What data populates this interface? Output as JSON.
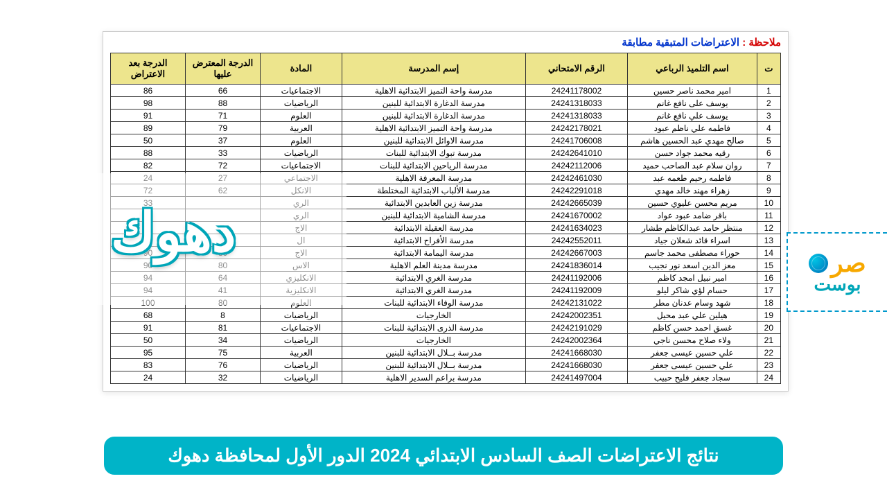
{
  "note_label": "ملاحظة :",
  "note_text": "الاعتراضات المتبقية مطابقة",
  "overlay_city": "دهوك",
  "banner_text": "نتائج الاعتراضات الصف السادس الابتدائي 2024 الدور الأول لمحافظة دهوك",
  "logo_main": "صر",
  "logo_sub": "بوست",
  "headers": [
    "ت",
    "اسم التلميذ الرباعي",
    "الرقم الامتحاني",
    "إسم المدرسة",
    "المادة",
    "الدرجة المعترض عليها",
    "الدرجة بعد الاعتراض"
  ],
  "rows": [
    {
      "n": "1",
      "name": "امير محمد ناصر حسين",
      "exam": "24241178002",
      "school": "مدرسة واحة التميز الابتدائية الاهلية",
      "subject": "الاجتماعيات",
      "g1": "66",
      "g2": "86"
    },
    {
      "n": "2",
      "name": "يوسف على نافع غانم",
      "exam": "24241318033",
      "school": "مدرسة الدغارة الابتدائية للبنين",
      "subject": "الرياضيات",
      "g1": "88",
      "g2": "98"
    },
    {
      "n": "3",
      "name": "يوسف علي نافع غانم",
      "exam": "24241318033",
      "school": "مدرسة الدغارة الابتدائية للبنين",
      "subject": "العلوم",
      "g1": "71",
      "g2": "91"
    },
    {
      "n": "4",
      "name": "فاطمه علي ناظم عبود",
      "exam": "24242178021",
      "school": "مدرسة واحة التميز الابتدائية الاهلية",
      "subject": "العربية",
      "g1": "79",
      "g2": "89"
    },
    {
      "n": "5",
      "name": "صالح مهدي عبد الحسين هاشم",
      "exam": "24241706008",
      "school": "مدرسة الاوائل الابتدائية للبنين",
      "subject": "العلوم",
      "g1": "37",
      "g2": "50"
    },
    {
      "n": "6",
      "name": "رقيه محمد جواد حسن",
      "exam": "24242641010",
      "school": "مدرسة تبوك الابتدائية للبنات",
      "subject": "الرياضيات",
      "g1": "33",
      "g2": "88"
    },
    {
      "n": "7",
      "name": "روان سلام عبد الصاحب حميد",
      "exam": "24242112006",
      "school": "مدرسة الرياحين الابتدائية للبنات",
      "subject": "الاجتماعيات",
      "g1": "72",
      "g2": "82"
    },
    {
      "n": "8",
      "name": "فاطمه رحيم طعمه عبد",
      "exam": "24242461030",
      "school": "مدرسة المعرفة الاهلية",
      "subject": "الاجتماعي",
      "g1": "27",
      "g2": "24"
    },
    {
      "n": "9",
      "name": "زهراء مهند خالد مهدي",
      "exam": "24242291018",
      "school": "مدرسة الألباب الابتدائية المختلطة",
      "subject": "الانكل",
      "g1": "62",
      "g2": "72"
    },
    {
      "n": "10",
      "name": "مريم محسن عليوي حسين",
      "exam": "24242665039",
      "school": "مدرسة زين العابدين الابتدائية",
      "subject": "الري",
      "g1": "",
      "g2": "33"
    },
    {
      "n": "11",
      "name": "باقر ضامد عبود عواد",
      "exam": "24241670002",
      "school": "مدرسة الشامية الابتدائية للبنين",
      "subject": "الري",
      "g1": "",
      "g2": "82"
    },
    {
      "n": "12",
      "name": "منتظر حامد عبدالكاظم طشار",
      "exam": "24241634023",
      "school": "مدرسة العقيلة الابتدائية",
      "subject": "الاج",
      "g1": "",
      "g2": ""
    },
    {
      "n": "13",
      "name": "اسراء قائد شعلان جياد",
      "exam": "24242552011",
      "school": "مدرسة  الأفراح الابتدائية",
      "subject": "ال",
      "g1": "",
      "g2": ""
    },
    {
      "n": "14",
      "name": "حوراء مصطفى محمد جاسم",
      "exam": "24242667003",
      "school": "مدرسة اليمامة  الابتدائية",
      "subject": "الاج",
      "g1": "80",
      "g2": "90"
    },
    {
      "n": "15",
      "name": "معز الدين اسعد نور نجيب",
      "exam": "24241836014",
      "school": "مدرسة مدينة العلم الاهلية",
      "subject": "الاس",
      "g1": "80",
      "g2": "90"
    },
    {
      "n": "16",
      "name": "امير نبيل امجد كاظم",
      "exam": "24241192006",
      "school": "مدرسة الغري الابتدائية",
      "subject": "الانكليزي",
      "g1": "64",
      "g2": "94"
    },
    {
      "n": "17",
      "name": "حسام لؤي شاكر ليلو",
      "exam": "24241192009",
      "school": "مدرسة الغري الابتدائية",
      "subject": "الانكليزية",
      "g1": "41",
      "g2": "94"
    },
    {
      "n": "18",
      "name": "شهد وسام عدنان مطر",
      "exam": "24242131022",
      "school": "مدرسة الوفاء الابتدائية للبنات",
      "subject": "العلوم",
      "g1": "80",
      "g2": "100"
    },
    {
      "n": "19",
      "name": "هيلين علي عبد محيل",
      "exam": "24242002351",
      "school": "الخارجيات",
      "subject": "الرياضيات",
      "g1": "8",
      "g2": "68"
    },
    {
      "n": "20",
      "name": "غسق احمد حسن كاظم",
      "exam": "24242191029",
      "school": "مدرسة الذرى الابتدائية للبنات",
      "subject": "الاجتماعيات",
      "g1": "81",
      "g2": "91"
    },
    {
      "n": "21",
      "name": "ولاء صلاح محسن ناجي",
      "exam": "24242002364",
      "school": "الخارجيات",
      "subject": "الرياضيات",
      "g1": "34",
      "g2": "50"
    },
    {
      "n": "22",
      "name": "علي حسين عيسى جعفر",
      "exam": "24241668030",
      "school": "مدرسة بــلال الابتدائية للبنين",
      "subject": "العربية",
      "g1": "75",
      "g2": "95"
    },
    {
      "n": "23",
      "name": "علي حسين عيسى جعفر",
      "exam": "24241668030",
      "school": "مدرسة بــلال الابتدائية للبنين",
      "subject": "الرياضيات",
      "g1": "76",
      "g2": "83"
    },
    {
      "n": "24",
      "name": "سجاد جعفر فليح حبيب",
      "exam": "24241497004",
      "school": "مدرسة براعم السدير الاهلية",
      "subject": "الرياضيات",
      "g1": "32",
      "g2": "24"
    }
  ]
}
